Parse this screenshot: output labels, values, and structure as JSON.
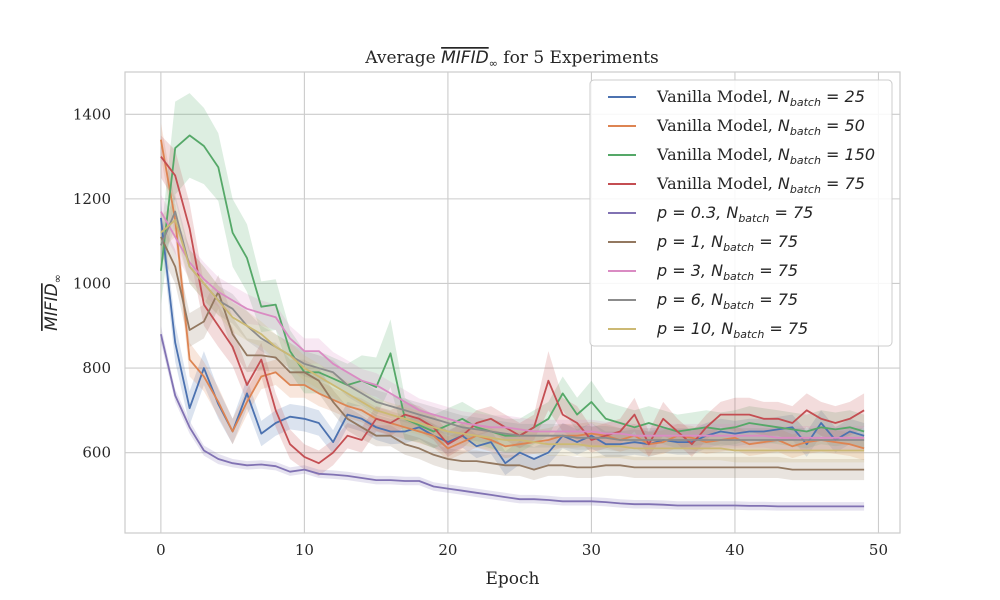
{
  "chart_data": {
    "type": "line",
    "title": {
      "prefix": "Average ",
      "symbol": "MIFID",
      "subscript": "∞",
      "suffix": " for 5 Experiments"
    },
    "xlabel": "Epoch",
    "ylabel": {
      "symbol": "MIFID",
      "subscript": "∞"
    },
    "xlim": [
      -2.5,
      51.5
    ],
    "ylim": [
      410,
      1500
    ],
    "xticks": [
      0,
      10,
      20,
      30,
      40,
      50
    ],
    "yticks": [
      600,
      800,
      1000,
      1200,
      1400
    ],
    "grid": true,
    "legend_position": "top-right",
    "x": [
      0,
      1,
      2,
      3,
      4,
      5,
      6,
      7,
      8,
      9,
      10,
      11,
      12,
      13,
      14,
      15,
      16,
      17,
      18,
      19,
      20,
      21,
      22,
      23,
      24,
      25,
      26,
      27,
      28,
      29,
      30,
      31,
      32,
      33,
      34,
      35,
      36,
      37,
      38,
      39,
      40,
      41,
      42,
      43,
      44,
      45,
      46,
      47,
      48,
      49
    ],
    "series": [
      {
        "label_prefix": "Vanilla Model, ",
        "param": "",
        "param_value": "",
        "batch": "25",
        "color": "#4c72b0",
        "values": [
          1155,
          860,
          705,
          800,
          715,
          650,
          740,
          645,
          670,
          685,
          680,
          670,
          625,
          690,
          680,
          660,
          650,
          650,
          660,
          640,
          625,
          640,
          615,
          625,
          575,
          600,
          585,
          600,
          640,
          625,
          640,
          620,
          620,
          625,
          620,
          630,
          625,
          625,
          640,
          650,
          645,
          650,
          650,
          655,
          660,
          620,
          670,
          630,
          650,
          640
        ],
        "ci": [
          40,
          45,
          40,
          40,
          35,
          30,
          35,
          30,
          30,
          30,
          30,
          30,
          28,
          30,
          30,
          30,
          30,
          28,
          28,
          28,
          28,
          28,
          28,
          28,
          28,
          28,
          28,
          28,
          30,
          30,
          30,
          30,
          30,
          30,
          30,
          30,
          30,
          30,
          30,
          30,
          30,
          30,
          30,
          30,
          30,
          30,
          30,
          30,
          30,
          30
        ]
      },
      {
        "label_prefix": "Vanilla Model, ",
        "param": "",
        "param_value": "",
        "batch": "50",
        "color": "#dd8452",
        "values": [
          1340,
          1150,
          820,
          780,
          720,
          650,
          720,
          780,
          790,
          760,
          760,
          740,
          725,
          710,
          700,
          680,
          670,
          660,
          650,
          640,
          610,
          625,
          640,
          630,
          615,
          620,
          625,
          630,
          640,
          640,
          645,
          640,
          630,
          640,
          620,
          625,
          640,
          635,
          625,
          630,
          635,
          620,
          625,
          630,
          615,
          625,
          630,
          625,
          620,
          610
        ],
        "ci": [
          40,
          40,
          40,
          35,
          35,
          30,
          30,
          30,
          30,
          30,
          30,
          30,
          28,
          28,
          28,
          28,
          28,
          28,
          28,
          28,
          28,
          28,
          28,
          28,
          28,
          28,
          28,
          28,
          28,
          28,
          28,
          28,
          28,
          28,
          28,
          28,
          28,
          28,
          28,
          28,
          28,
          28,
          28,
          28,
          28,
          28,
          28,
          28,
          28,
          28
        ]
      },
      {
        "label_prefix": "Vanilla Model, ",
        "param": "",
        "param_value": "",
        "batch": "150",
        "color": "#55a868",
        "values": [
          1030,
          1320,
          1350,
          1325,
          1275,
          1120,
          1060,
          945,
          950,
          840,
          790,
          790,
          775,
          760,
          770,
          755,
          835,
          680,
          665,
          650,
          665,
          680,
          660,
          650,
          640,
          640,
          660,
          680,
          740,
          690,
          720,
          680,
          670,
          660,
          670,
          660,
          650,
          655,
          660,
          655,
          660,
          670,
          665,
          660,
          655,
          650,
          660,
          655,
          660,
          650
        ],
        "ci": [
          80,
          110,
          100,
          90,
          80,
          80,
          80,
          60,
          60,
          50,
          50,
          50,
          50,
          50,
          60,
          70,
          80,
          50,
          40,
          40,
          40,
          40,
          40,
          40,
          40,
          40,
          40,
          40,
          40,
          40,
          50,
          40,
          40,
          40,
          40,
          40,
          40,
          40,
          40,
          40,
          40,
          40,
          40,
          40,
          40,
          40,
          40,
          40,
          40,
          40
        ]
      },
      {
        "label_prefix": "Vanilla Model, ",
        "param": "",
        "param_value": "",
        "batch": "75",
        "color": "#c44e52",
        "values": [
          1300,
          1255,
          1130,
          950,
          900,
          850,
          760,
          820,
          700,
          620,
          590,
          575,
          600,
          640,
          630,
          680,
          670,
          690,
          680,
          660,
          620,
          640,
          670,
          680,
          660,
          640,
          660,
          770,
          690,
          670,
          630,
          640,
          650,
          690,
          620,
          680,
          650,
          620,
          660,
          690,
          690,
          690,
          680,
          680,
          670,
          700,
          680,
          670,
          680,
          700
        ],
        "ci": [
          50,
          60,
          60,
          50,
          50,
          45,
          40,
          40,
          40,
          35,
          30,
          30,
          30,
          30,
          30,
          30,
          30,
          30,
          30,
          30,
          30,
          30,
          30,
          30,
          30,
          30,
          30,
          70,
          40,
          40,
          30,
          30,
          30,
          40,
          30,
          40,
          30,
          30,
          30,
          30,
          40,
          40,
          40,
          40,
          40,
          40,
          40,
          40,
          40,
          40
        ]
      },
      {
        "label_prefix": "",
        "param": "p",
        "param_value": "0.3",
        "batch": "75",
        "color": "#8172b3",
        "values": [
          880,
          735,
          660,
          605,
          585,
          575,
          570,
          572,
          568,
          555,
          560,
          550,
          548,
          545,
          540,
          535,
          535,
          533,
          533,
          520,
          515,
          510,
          505,
          500,
          495,
          490,
          490,
          488,
          485,
          485,
          485,
          483,
          480,
          478,
          478,
          477,
          475,
          475,
          475,
          475,
          475,
          474,
          474,
          473,
          473,
          473,
          473,
          473,
          473,
          473
        ],
        "ci": [
          20,
          15,
          15,
          12,
          12,
          10,
          10,
          10,
          10,
          10,
          10,
          10,
          10,
          10,
          10,
          10,
          10,
          10,
          10,
          10,
          10,
          10,
          10,
          10,
          10,
          10,
          10,
          10,
          10,
          10,
          10,
          10,
          10,
          10,
          10,
          10,
          10,
          10,
          10,
          10,
          10,
          10,
          10,
          10,
          10,
          10,
          10,
          10,
          10,
          10
        ]
      },
      {
        "label_prefix": "",
        "param": "p",
        "param_value": "1",
        "batch": "75",
        "color": "#937860",
        "values": [
          1110,
          1040,
          890,
          910,
          980,
          880,
          830,
          830,
          825,
          790,
          790,
          770,
          720,
          680,
          660,
          640,
          640,
          620,
          610,
          595,
          585,
          580,
          580,
          575,
          570,
          570,
          560,
          570,
          570,
          565,
          565,
          570,
          570,
          565,
          565,
          565,
          565,
          565,
          565,
          565,
          565,
          565,
          565,
          565,
          560,
          560,
          560,
          560,
          560,
          560
        ],
        "ci": [
          40,
          40,
          40,
          40,
          40,
          40,
          40,
          35,
          35,
          30,
          30,
          30,
          28,
          28,
          28,
          25,
          25,
          25,
          25,
          25,
          25,
          25,
          25,
          25,
          25,
          25,
          25,
          25,
          25,
          25,
          25,
          25,
          25,
          25,
          25,
          25,
          25,
          25,
          25,
          25,
          25,
          25,
          25,
          25,
          25,
          25,
          25,
          25,
          25,
          25
        ]
      },
      {
        "label_prefix": "",
        "param": "p",
        "param_value": "3",
        "batch": "75",
        "color": "#da8bc3",
        "values": [
          1170,
          1110,
          1050,
          1010,
          980,
          960,
          940,
          930,
          920,
          870,
          840,
          840,
          810,
          790,
          770,
          760,
          740,
          720,
          700,
          690,
          680,
          670,
          665,
          660,
          660,
          655,
          650,
          650,
          650,
          650,
          650,
          645,
          645,
          640,
          640,
          640,
          640,
          640,
          640,
          640,
          640,
          640,
          640,
          635,
          635,
          635,
          635,
          635,
          635,
          635
        ],
        "ci": [
          40,
          40,
          40,
          40,
          35,
          35,
          35,
          30,
          30,
          30,
          30,
          30,
          28,
          28,
          28,
          28,
          28,
          28,
          28,
          28,
          28,
          28,
          28,
          28,
          28,
          28,
          28,
          28,
          28,
          28,
          28,
          28,
          28,
          28,
          28,
          28,
          28,
          28,
          28,
          28,
          28,
          28,
          28,
          28,
          28,
          28,
          28,
          28,
          28,
          28
        ]
      },
      {
        "label_prefix": "",
        "param": "p",
        "param_value": "6",
        "batch": "75",
        "color": "#8c8c8c",
        "values": [
          1090,
          1170,
          1040,
          1000,
          960,
          940,
          900,
          870,
          850,
          830,
          810,
          800,
          790,
          760,
          740,
          720,
          710,
          700,
          690,
          680,
          670,
          660,
          655,
          650,
          645,
          640,
          640,
          640,
          640,
          635,
          635,
          635,
          630,
          630,
          630,
          630,
          630,
          630,
          630,
          630,
          630,
          630,
          630,
          630,
          630,
          630,
          630,
          630,
          630,
          630
        ],
        "ci": [
          40,
          40,
          40,
          40,
          35,
          35,
          35,
          30,
          30,
          30,
          30,
          30,
          28,
          28,
          28,
          28,
          28,
          28,
          28,
          28,
          28,
          28,
          28,
          28,
          28,
          28,
          28,
          28,
          28,
          28,
          28,
          28,
          28,
          28,
          28,
          28,
          28,
          28,
          28,
          28,
          28,
          28,
          28,
          28,
          28,
          28,
          28,
          28,
          28,
          28
        ]
      },
      {
        "label_prefix": "",
        "param": "p",
        "param_value": "10",
        "batch": "75",
        "color": "#ccb974",
        "values": [
          1120,
          1150,
          1040,
          1000,
          960,
          920,
          900,
          880,
          850,
          830,
          800,
          780,
          760,
          740,
          720,
          700,
          690,
          680,
          670,
          660,
          650,
          645,
          640,
          635,
          630,
          630,
          625,
          620,
          620,
          620,
          615,
          615,
          615,
          610,
          610,
          610,
          610,
          610,
          610,
          610,
          605,
          605,
          605,
          605,
          605,
          605,
          605,
          605,
          605,
          605
        ],
        "ci": [
          40,
          40,
          40,
          40,
          35,
          35,
          35,
          30,
          30,
          30,
          30,
          30,
          28,
          28,
          28,
          28,
          28,
          28,
          28,
          28,
          28,
          28,
          28,
          28,
          28,
          28,
          28,
          28,
          28,
          28,
          28,
          28,
          28,
          28,
          28,
          28,
          28,
          28,
          28,
          28,
          28,
          28,
          28,
          28,
          28,
          28,
          28,
          28,
          28,
          28
        ]
      }
    ]
  }
}
